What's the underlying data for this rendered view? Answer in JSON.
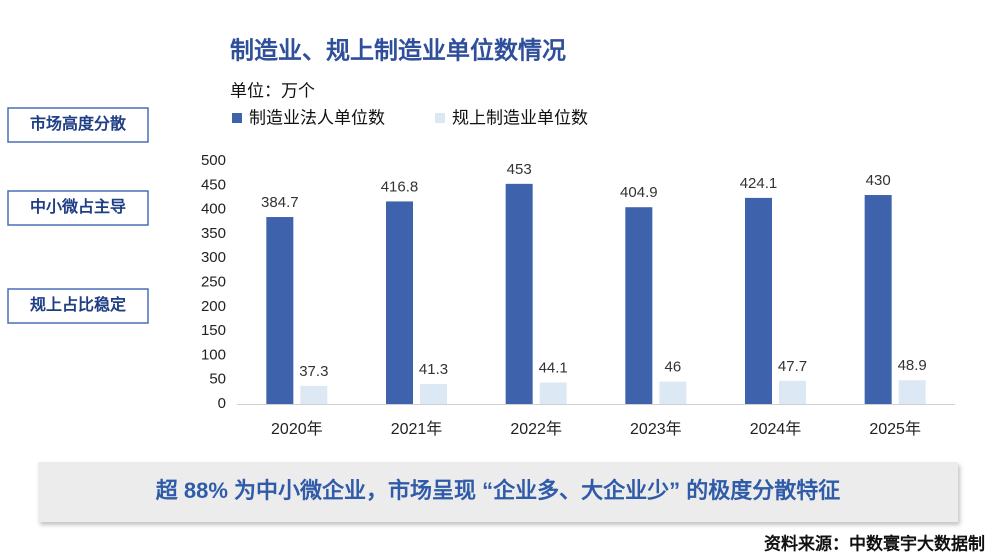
{
  "chart_data": {
    "type": "bar",
    "title": "制造业、规上制造业单位数情况",
    "unit": "单位：万个",
    "categories": [
      "2020年",
      "2021年",
      "2022年",
      "2023年",
      "2024年",
      "2025年"
    ],
    "series": [
      {
        "name": "制造业法人单位数",
        "color": "#3f62ad",
        "values": [
          384.7,
          416.8,
          453,
          404.9,
          424.1,
          430
        ]
      },
      {
        "name": "规上制造业单位数",
        "color": "#dde8f5",
        "values": [
          37.3,
          41.3,
          44.1,
          46,
          47.7,
          48.9
        ]
      }
    ],
    "ylim": [
      0,
      500
    ],
    "yticks": [
      0,
      50,
      100,
      150,
      200,
      250,
      300,
      350,
      400,
      450,
      500
    ],
    "grid": false
  },
  "side_labels": [
    "市场高度分散",
    "中小微占主导",
    "规上占比稳定"
  ],
  "headline": "超 88% 为中小微企业，市场呈现 “企业多、大企业少” 的极度分散特征",
  "source": "资料来源：中数寰宇大数据制"
}
